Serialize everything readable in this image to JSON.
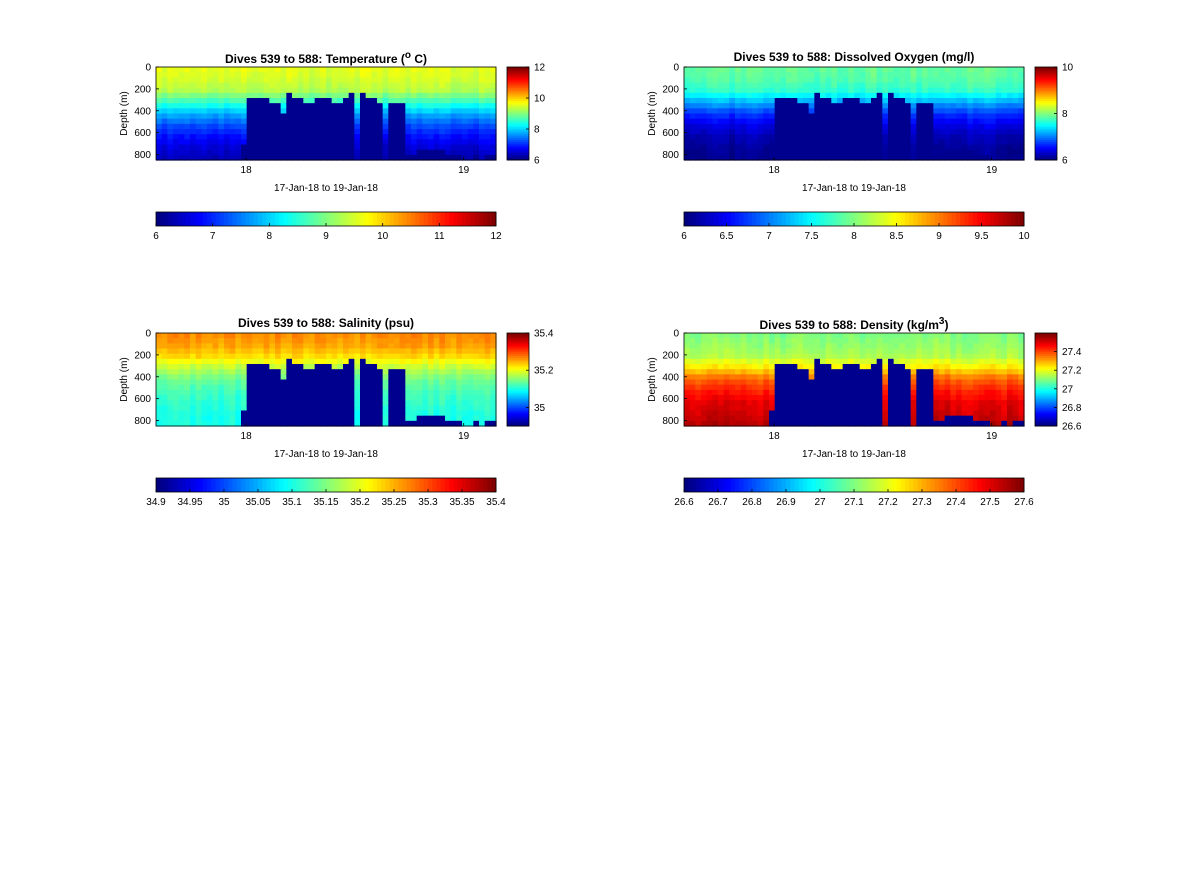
{
  "x_axis_label": "17-Jan-18 to 19-Jan-18",
  "y_axis_label": "Depth (m)",
  "chart_data": [
    {
      "type": "heatmap",
      "id": "temperature",
      "title_text": "Dives 539 to 588: Temperature (",
      "title_sup": "o",
      "title_after": " C)",
      "x_ticks": [
        "18",
        "19"
      ],
      "x_range": [
        "17-Jan-18",
        "19-Jan-18"
      ],
      "y_ticks": [
        "0",
        "200",
        "400",
        "600",
        "800"
      ],
      "y_range": [
        0,
        850
      ],
      "y_reversed": true,
      "colorbar_side": {
        "ticks": [
          "6",
          "8",
          "10",
          "12"
        ],
        "range": [
          6,
          12
        ]
      },
      "colorbar_bottom": {
        "ticks": [
          "6",
          "7",
          "8",
          "9",
          "10",
          "11",
          "12"
        ],
        "range": [
          6,
          12
        ]
      },
      "profile": [
        9.6,
        9.5,
        9.3,
        8.6,
        7.8,
        7.2,
        6.8,
        6.5,
        6.3
      ],
      "mask": "#00008f"
    },
    {
      "type": "heatmap",
      "id": "oxygen",
      "title_text": "Dives 539 to 588: Dissolved Oxygen (mg/l)",
      "title_sup": "",
      "title_after": "",
      "x_ticks": [
        "18",
        "19"
      ],
      "x_range": [
        "17-Jan-18",
        "19-Jan-18"
      ],
      "y_ticks": [
        "0",
        "200",
        "400",
        "600",
        "800"
      ],
      "y_range": [
        0,
        850
      ],
      "y_reversed": true,
      "colorbar_side": {
        "ticks": [
          "6",
          "8",
          "10"
        ],
        "range": [
          6,
          10
        ]
      },
      "colorbar_bottom": {
        "ticks": [
          "6",
          "6.5",
          "7",
          "7.5",
          "8",
          "8.5",
          "9",
          "9.5",
          "10"
        ],
        "range": [
          6,
          10
        ]
      },
      "profile": [
        7.9,
        7.85,
        7.7,
        7.2,
        6.7,
        6.4,
        6.2,
        6.1,
        6.05
      ],
      "mask": "#00008f"
    },
    {
      "type": "heatmap",
      "id": "salinity",
      "title_text": "Dives 539 to 588: Salinity (psu)",
      "title_sup": "",
      "title_after": "",
      "x_ticks": [
        "18",
        "19"
      ],
      "x_range": [
        "17-Jan-18",
        "19-Jan-18"
      ],
      "y_ticks": [
        "0",
        "200",
        "400",
        "600",
        "800"
      ],
      "y_range": [
        0,
        850
      ],
      "y_reversed": true,
      "colorbar_side": {
        "ticks": [
          "35",
          "35.2",
          "35.4"
        ],
        "range": [
          34.9,
          35.4
        ]
      },
      "colorbar_bottom": {
        "ticks": [
          "34.9",
          "34.95",
          "35",
          "35.05",
          "35.1",
          "35.15",
          "35.2",
          "35.25",
          "35.3",
          "35.35",
          "35.4"
        ],
        "range": [
          34.9,
          35.4
        ]
      },
      "profile": [
        35.27,
        35.26,
        35.23,
        35.18,
        35.14,
        35.12,
        35.11,
        35.1,
        35.1
      ],
      "mask": "#00008f"
    },
    {
      "type": "heatmap",
      "id": "density",
      "title_text": "Dives 539 to 588: Density (kg/m",
      "title_sup": "3",
      "title_after": ")",
      "x_ticks": [
        "18",
        "19"
      ],
      "x_range": [
        "17-Jan-18",
        "19-Jan-18"
      ],
      "y_ticks": [
        "0",
        "200",
        "400",
        "600",
        "800"
      ],
      "y_range": [
        0,
        850
      ],
      "y_reversed": true,
      "colorbar_side": {
        "ticks": [
          "26.6",
          "26.8",
          "27",
          "27.2",
          "27.4"
        ],
        "range": [
          26.6,
          27.6
        ]
      },
      "colorbar_bottom": {
        "ticks": [
          "26.6",
          "26.7",
          "26.8",
          "26.9",
          "27",
          "27.1",
          "27.2",
          "27.3",
          "27.4",
          "27.5",
          "27.6"
        ],
        "range": [
          26.6,
          27.6
        ]
      },
      "profile": [
        27.1,
        27.12,
        27.15,
        27.25,
        27.38,
        27.45,
        27.5,
        27.52,
        27.55
      ],
      "mask": "#00008f"
    }
  ]
}
